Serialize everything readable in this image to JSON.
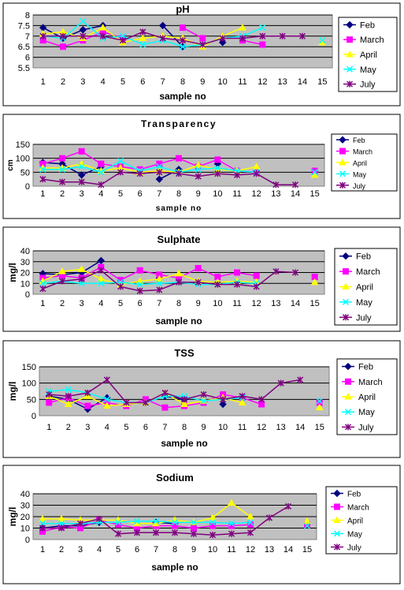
{
  "colors": {
    "Feb": "#000080",
    "March": "#ff00ff",
    "April": "#ffff00",
    "May": "#00ffff",
    "July": "#800080",
    "plot_background": "#c0c0c0",
    "gridline": "#000000"
  },
  "chart_data": [
    {
      "type": "line",
      "title": "pH",
      "xlabel": "sample no",
      "ylabel": "",
      "categories": [
        "1",
        "2",
        "3",
        "4",
        "5",
        "6",
        "7",
        "8",
        "9",
        "10",
        "11",
        "12",
        "13",
        "14",
        "15"
      ],
      "ylim": [
        5.5,
        8
      ],
      "yticks": [
        "5.5",
        "6",
        "6.5",
        "7",
        "7.5",
        "8"
      ],
      "grid": true,
      "legend_position": "right",
      "series": [
        {
          "name": "Feb",
          "values": [
            7.4,
            6.9,
            7.3,
            7.5,
            null,
            null,
            7.5,
            6.5,
            null,
            6.7,
            null,
            null,
            null,
            null,
            null
          ]
        },
        {
          "name": "March",
          "values": [
            6.8,
            6.5,
            6.8,
            7.2,
            6.9,
            null,
            null,
            7.4,
            6.9,
            null,
            6.8,
            6.6,
            null,
            null,
            null
          ]
        },
        {
          "name": "April",
          "values": [
            7.1,
            7.2,
            6.9,
            7.4,
            6.7,
            6.9,
            7.0,
            6.9,
            6.5,
            7.0,
            7.4,
            null,
            null,
            null,
            6.7
          ]
        },
        {
          "name": "May",
          "values": [
            7.0,
            6.9,
            7.7,
            6.9,
            7.0,
            6.6,
            6.8,
            6.5,
            6.6,
            6.9,
            7.0,
            7.4,
            null,
            null,
            6.8
          ]
        },
        {
          "name": "July",
          "values": [
            7.0,
            7.0,
            7.0,
            7.0,
            6.8,
            7.2,
            6.9,
            6.8,
            6.6,
            6.9,
            6.9,
            7.0,
            7.0,
            7.0,
            null
          ]
        }
      ]
    },
    {
      "type": "line",
      "title": "Transparency",
      "xlabel": "sample no",
      "ylabel": "cm",
      "categories": [
        "1",
        "2",
        "3",
        "4",
        "5",
        "6",
        "7",
        "8",
        "9",
        "10",
        "11",
        "12",
        "13",
        "14",
        "15"
      ],
      "ylim": [
        0,
        150
      ],
      "yticks": [
        "0",
        "50",
        "100",
        "150"
      ],
      "grid": true,
      "legend_position": "right",
      "series": [
        {
          "name": "Feb",
          "values": [
            85,
            80,
            40,
            70,
            null,
            null,
            25,
            60,
            null,
            80,
            null,
            null,
            null,
            null,
            null
          ]
        },
        {
          "name": "March",
          "values": [
            80,
            100,
            125,
            80,
            70,
            60,
            80,
            100,
            70,
            95,
            55,
            50,
            null,
            null,
            55
          ]
        },
        {
          "name": "April",
          "values": [
            65,
            65,
            80,
            55,
            65,
            50,
            55,
            50,
            75,
            60,
            55,
            70,
            null,
            null,
            40
          ]
        },
        {
          "name": "May",
          "values": [
            60,
            60,
            70,
            50,
            90,
            55,
            70,
            50,
            60,
            65,
            55,
            50,
            null,
            null,
            50
          ]
        },
        {
          "name": "July",
          "values": [
            25,
            15,
            15,
            5,
            50,
            45,
            50,
            45,
            35,
            45,
            40,
            45,
            5,
            5,
            null
          ]
        }
      ]
    },
    {
      "type": "line",
      "title": "Sulphate",
      "xlabel": "sample no",
      "ylabel": "mg/l",
      "categories": [
        "1",
        "2",
        "3",
        "4",
        "5",
        "6",
        "7",
        "8",
        "9",
        "10",
        "11",
        "12",
        "13",
        "14",
        "15"
      ],
      "ylim": [
        0,
        40
      ],
      "yticks": [
        "0",
        "10",
        "20",
        "30",
        "40"
      ],
      "grid": true,
      "legend_position": "right",
      "series": [
        {
          "name": "Feb",
          "values": [
            19,
            18,
            20,
            31,
            null,
            null,
            15,
            null,
            null,
            null,
            null,
            null,
            null,
            null,
            null
          ]
        },
        {
          "name": "March",
          "values": [
            15,
            17,
            15,
            25,
            13,
            22,
            18,
            15,
            24,
            16,
            20,
            17,
            null,
            null,
            16
          ]
        },
        {
          "name": "April",
          "values": [
            12,
            21,
            23,
            14,
            9,
            12,
            14,
            19,
            12,
            11,
            12,
            11,
            null,
            null,
            11
          ]
        },
        {
          "name": "May",
          "values": [
            10,
            12,
            10,
            10,
            11,
            9,
            10,
            11,
            9,
            9,
            11,
            10,
            null,
            null,
            null
          ]
        },
        {
          "name": "July",
          "values": [
            5,
            12,
            14,
            22,
            7,
            3,
            4,
            11,
            11,
            9,
            9,
            7,
            21,
            20,
            null
          ]
        }
      ]
    },
    {
      "type": "line",
      "title": "TSS",
      "xlabel": "sample no",
      "ylabel": "mg/l",
      "categories": [
        "1",
        "2",
        "3",
        "4",
        "5",
        "6",
        "7",
        "8",
        "9",
        "10",
        "11",
        "12",
        "13",
        "14",
        "15"
      ],
      "ylim": [
        0,
        150
      ],
      "yticks": [
        "0",
        "50",
        "100",
        "150"
      ],
      "grid": true,
      "legend_position": "right",
      "series": [
        {
          "name": "Feb",
          "values": [
            60,
            50,
            20,
            55,
            null,
            null,
            60,
            50,
            null,
            35,
            null,
            null,
            null,
            null,
            null
          ]
        },
        {
          "name": "March",
          "values": [
            40,
            55,
            30,
            40,
            30,
            50,
            25,
            30,
            40,
            65,
            55,
            35,
            null,
            null,
            40
          ]
        },
        {
          "name": "April",
          "values": [
            60,
            35,
            60,
            30,
            35,
            40,
            70,
            35,
            45,
            55,
            40,
            null,
            null,
            null,
            25
          ]
        },
        {
          "name": "May",
          "values": [
            75,
            80,
            70,
            50,
            40,
            40,
            60,
            60,
            45,
            50,
            55,
            null,
            null,
            null,
            45
          ]
        },
        {
          "name": "July",
          "values": [
            65,
            60,
            70,
            110,
            40,
            40,
            70,
            50,
            65,
            50,
            60,
            50,
            100,
            110,
            null
          ]
        }
      ]
    },
    {
      "type": "line",
      "title": "Sodium",
      "xlabel": "sample no",
      "ylabel": "mg/l",
      "categories": [
        "1",
        "2",
        "3",
        "4",
        "5",
        "6",
        "7",
        "8",
        "9",
        "10",
        "11",
        "12",
        "13",
        "14",
        "15"
      ],
      "ylim": [
        0,
        40
      ],
      "yticks": [
        "0",
        "10",
        "20",
        "30",
        "40"
      ],
      "grid": true,
      "legend_position": "right",
      "series": [
        {
          "name": "Feb",
          "values": [
            10,
            12,
            12,
            15,
            null,
            null,
            15,
            14,
            null,
            null,
            null,
            null,
            null,
            null,
            null
          ]
        },
        {
          "name": "March",
          "values": [
            7,
            11,
            10,
            17,
            13,
            10,
            12,
            12,
            10,
            12,
            12,
            13,
            null,
            null,
            13
          ]
        },
        {
          "name": "April",
          "values": [
            18,
            18,
            17,
            17,
            17,
            14,
            14,
            17,
            15,
            19,
            32,
            20,
            null,
            null,
            16
          ]
        },
        {
          "name": "May",
          "values": [
            14,
            14,
            14,
            15,
            15,
            16,
            16,
            15,
            15,
            15,
            14,
            15,
            null,
            null,
            12
          ]
        },
        {
          "name": "July",
          "values": [
            10,
            10,
            14,
            18,
            5,
            6,
            6,
            6,
            5,
            4,
            5,
            6,
            19,
            29,
            null
          ]
        }
      ]
    }
  ]
}
